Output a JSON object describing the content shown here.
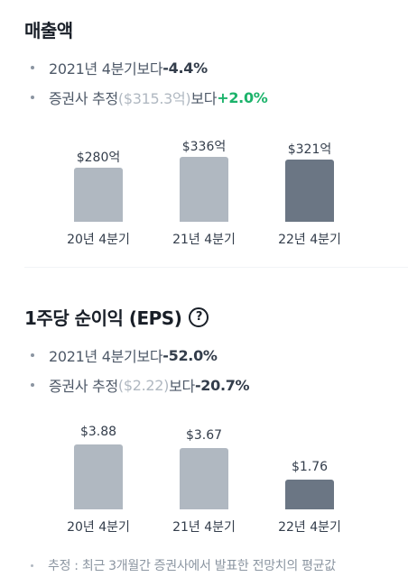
{
  "revenue": {
    "title": "매출액",
    "yoy": {
      "prefix": "2021년 4분기보다 ",
      "value": "-4.4%"
    },
    "consensus": {
      "prefix": "증권사 추정",
      "estimate": "($315.3억)",
      "mid": "보다 ",
      "value": "+2.0%"
    },
    "colors": {
      "positive": "#1cb36b"
    }
  },
  "eps": {
    "title": "1주당 순이익 (EPS)",
    "help_icon": "question-circle-icon",
    "yoy": {
      "prefix": "2021년 4분기보다 ",
      "value": "-52.0%"
    },
    "consensus": {
      "prefix": "증권사 추정",
      "estimate": "($2.22)",
      "mid": "보다 ",
      "value": "-20.7%"
    }
  },
  "chart_data": [
    {
      "type": "bar",
      "categories": [
        "20년 4분기",
        "21년 4분기",
        "22년 4분기"
      ],
      "values": [
        280,
        336,
        321
      ],
      "labels": [
        "$280억",
        "$336억",
        "$321억"
      ],
      "ylim": [
        0,
        400
      ],
      "colors": [
        "#b0b8c1",
        "#b0b8c1",
        "#6b7684"
      ]
    },
    {
      "type": "bar",
      "categories": [
        "20년 4분기",
        "21년 4분기",
        "22년 4분기"
      ],
      "values": [
        3.88,
        3.67,
        1.76
      ],
      "labels": [
        "$3.88",
        "$3.67",
        "$1.76"
      ],
      "ylim": [
        0,
        5.4
      ],
      "colors": [
        "#b0b8c1",
        "#b0b8c1",
        "#6b7684"
      ]
    }
  ],
  "footnote": "추정 : 최근 3개월간 증권사에서 발표한 전망치의 평균값"
}
